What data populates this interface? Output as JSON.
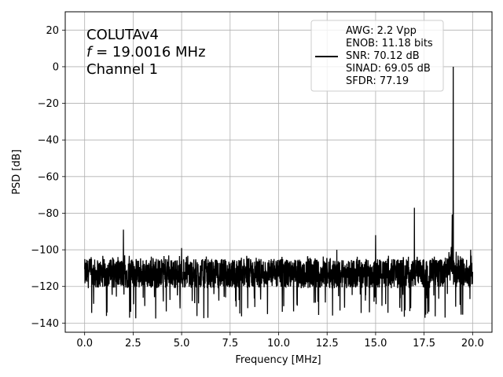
{
  "chart_data": {
    "type": "line",
    "xlabel": "Frequency [MHz]",
    "ylabel": "PSD [dB]",
    "xlim": [
      -1.0,
      21.0
    ],
    "ylim": [
      -145,
      30
    ],
    "xticks": [
      0.0,
      2.5,
      5.0,
      7.5,
      10.0,
      12.5,
      15.0,
      17.5,
      20.0
    ],
    "xtick_labels": [
      "0.0",
      "2.5",
      "5.0",
      "7.5",
      "10.0",
      "12.5",
      "15.0",
      "17.5",
      "20.0"
    ],
    "yticks": [
      20,
      0,
      -20,
      -40,
      -60,
      -80,
      -100,
      -120,
      -140
    ],
    "ytick_labels": [
      "20",
      "0",
      "−20",
      "−40",
      "−60",
      "−80",
      "−100",
      "−120",
      "−140"
    ],
    "grid": true,
    "line_color": "#000000",
    "annotation": {
      "line1": "COLUTAv4",
      "line2_var": "f",
      "line2_rest": " = 19.0016 MHz",
      "line3": "Channel 1"
    },
    "legend": {
      "placement": "top-right",
      "lines": [
        "AWG: 2.2 Vpp",
        "ENOB: 11.18 bits",
        "SNR: 70.12 dB",
        "SINAD: 69.05 dB",
        "SFDR: 77.19"
      ]
    },
    "noise_floor": {
      "x_range": [
        0.0,
        20.0
      ],
      "center": -113,
      "min": -138,
      "max": -103
    },
    "spurs": [
      {
        "x": 2.0,
        "y": -89
      },
      {
        "x": 5.0,
        "y": -99
      },
      {
        "x": 13.0,
        "y": -100
      },
      {
        "x": 15.0,
        "y": -92
      },
      {
        "x": 17.0,
        "y": -77
      },
      {
        "x": 18.95,
        "y": -81
      },
      {
        "x": 19.0016,
        "y": 0
      },
      {
        "x": 19.9,
        "y": -100
      }
    ]
  }
}
